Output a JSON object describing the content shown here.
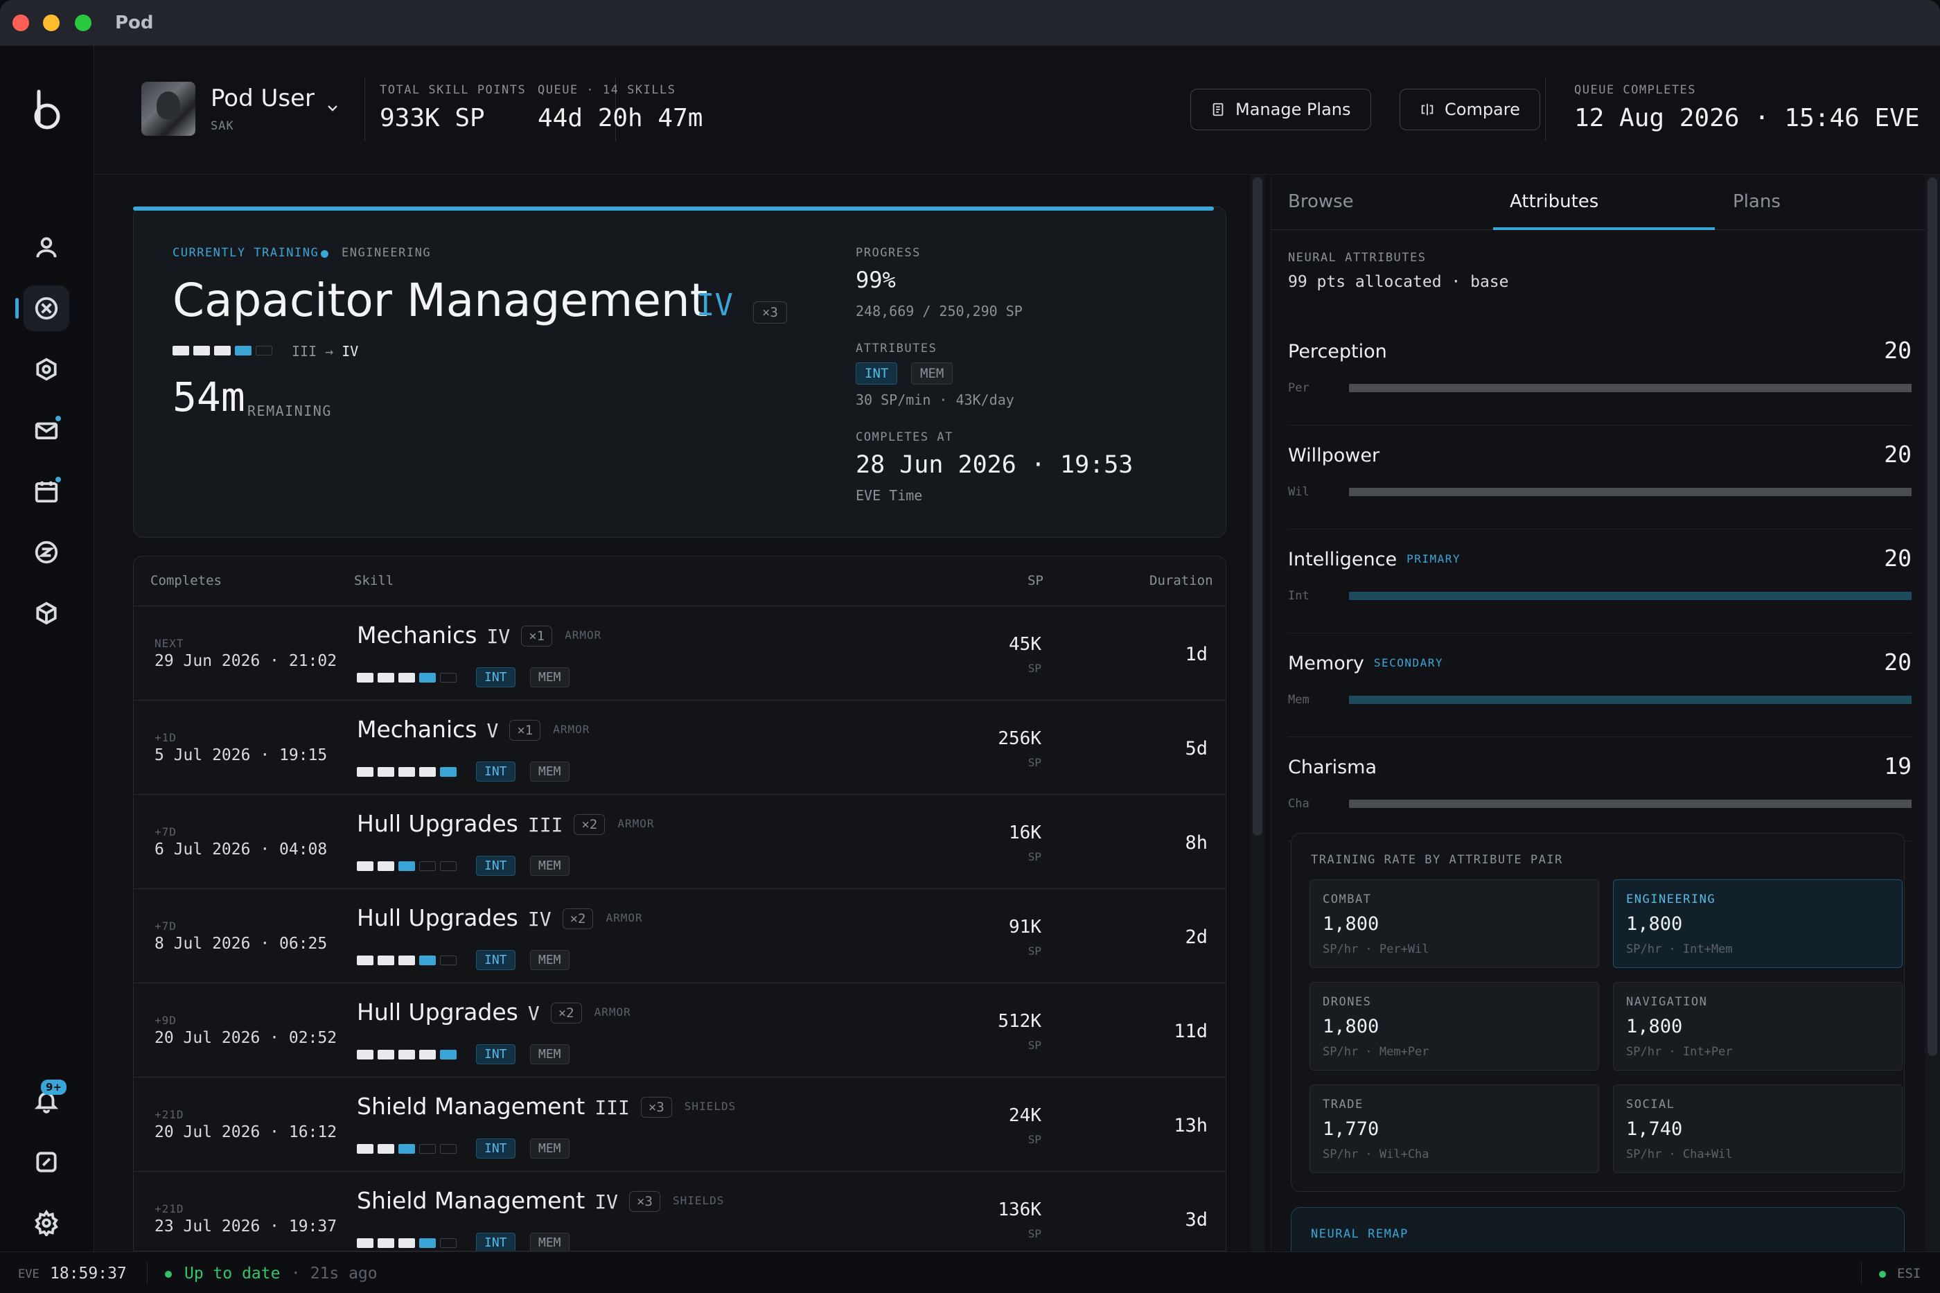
{
  "window": {
    "title": "Pod"
  },
  "header": {
    "user_name": "Pod User",
    "user_corp": "SAK",
    "total_sp_label": "TOTAL SKILL POINTS",
    "total_sp": "933K SP",
    "queue_label": "QUEUE · 14 SKILLS",
    "queue_time": "44d 20h 47m",
    "manage_plans": "Manage Plans",
    "compare": "Compare",
    "queue_completes_label": "QUEUE COMPLETES",
    "queue_completes": "12 Aug 2026 · 15:46 EVE"
  },
  "training": {
    "label": "CURRENTLY TRAINING",
    "category": "ENGINEERING",
    "skill": "Capacitor Management",
    "level": "IV",
    "multiplier": "×3",
    "level_from": "III",
    "arrow": "→",
    "level_to": "IV",
    "remaining": "54m",
    "remaining_label": "REMAINING",
    "progress_label": "PROGRESS",
    "progress": "99%",
    "progress_sp": "248,669 / 250,290 SP",
    "attributes_label": "ATTRIBUTES",
    "primary": "INT",
    "secondary": "MEM",
    "rate": "30 SP/min · 43K/day",
    "completes_label": "COMPLETES AT",
    "completes": "28 Jun 2026 · 19:53",
    "tz": "EVE Time",
    "pips_done": 3,
    "pip_progress": 0.99
  },
  "queue": {
    "headers": {
      "completes": "Completes",
      "skill": "Skill",
      "sp": "SP",
      "duration": "Duration"
    },
    "rows": [
      {
        "rel": "NEXT",
        "date": "29 Jun 2026 · 21:02",
        "name": "Mechanics",
        "level": "IV",
        "mult": "×1",
        "group": "ARMOR",
        "sp": "45K",
        "sp_unit": "SP",
        "dur": "1d",
        "pri": "INT",
        "sec": "MEM",
        "pips_done": 3,
        "pip_partial": true
      },
      {
        "rel": "+1D",
        "date": "5 Jul 2026 · 19:15",
        "name": "Mechanics",
        "level": "V",
        "mult": "×1",
        "group": "ARMOR",
        "sp": "256K",
        "sp_unit": "SP",
        "dur": "5d",
        "pri": "INT",
        "sec": "MEM",
        "pips_done": 4,
        "pip_partial": true
      },
      {
        "rel": "+7D",
        "date": "6 Jul 2026 · 04:08",
        "name": "Hull Upgrades",
        "level": "III",
        "mult": "×2",
        "group": "ARMOR",
        "sp": "16K",
        "sp_unit": "SP",
        "dur": "8h",
        "pri": "INT",
        "sec": "MEM",
        "pips_done": 2,
        "pip_partial": true
      },
      {
        "rel": "+7D",
        "date": "8 Jul 2026 · 06:25",
        "name": "Hull Upgrades",
        "level": "IV",
        "mult": "×2",
        "group": "ARMOR",
        "sp": "91K",
        "sp_unit": "SP",
        "dur": "2d",
        "pri": "INT",
        "sec": "MEM",
        "pips_done": 3,
        "pip_partial": true
      },
      {
        "rel": "+9D",
        "date": "20 Jul 2026 · 02:52",
        "name": "Hull Upgrades",
        "level": "V",
        "mult": "×2",
        "group": "ARMOR",
        "sp": "512K",
        "sp_unit": "SP",
        "dur": "11d",
        "pri": "INT",
        "sec": "MEM",
        "pips_done": 4,
        "pip_partial": true
      },
      {
        "rel": "+21D",
        "date": "20 Jul 2026 · 16:12",
        "name": "Shield Management",
        "level": "III",
        "mult": "×3",
        "group": "SHIELDS",
        "sp": "24K",
        "sp_unit": "SP",
        "dur": "13h",
        "pri": "INT",
        "sec": "MEM",
        "pips_done": 2,
        "pip_partial": true
      },
      {
        "rel": "+21D",
        "date": "23 Jul 2026 · 19:37",
        "name": "Shield Management",
        "level": "IV",
        "mult": "×3",
        "group": "SHIELDS",
        "sp": "136K",
        "sp_unit": "SP",
        "dur": "3d",
        "pri": "INT",
        "sec": "MEM",
        "pips_done": 3,
        "pip_partial": true
      }
    ]
  },
  "panel": {
    "tabs": [
      "Browse",
      "Attributes",
      "Plans"
    ],
    "active_tab": "Attributes",
    "neural_label": "NEURAL ATTRIBUTES",
    "neural_value": "99 pts allocated · base",
    "attributes": [
      {
        "name": "Perception",
        "tag": "",
        "abbr": "Per",
        "value": "20",
        "fill": 1.0,
        "color": "#4a4d52"
      },
      {
        "name": "Willpower",
        "tag": "",
        "abbr": "Wil",
        "value": "20",
        "fill": 1.0,
        "color": "#4a4d52"
      },
      {
        "name": "Intelligence",
        "tag": "PRIMARY",
        "abbr": "Int",
        "value": "20",
        "fill": 1.0,
        "color": "#1d4a5d"
      },
      {
        "name": "Memory",
        "tag": "SECONDARY",
        "abbr": "Mem",
        "value": "20",
        "fill": 1.0,
        "color": "#1d4a5d"
      },
      {
        "name": "Charisma",
        "tag": "",
        "abbr": "Cha",
        "value": "19",
        "fill": 1.0,
        "color": "#4a4d52"
      }
    ],
    "rate_title": "TRAINING RATE BY ATTRIBUTE PAIR",
    "rates": [
      {
        "name": "COMBAT",
        "value": "1,800",
        "sub": "SP/hr · Per+Wil"
      },
      {
        "name": "ENGINEERING",
        "value": "1,800",
        "sub": "SP/hr · Int+Mem"
      },
      {
        "name": "DRONES",
        "value": "1,800",
        "sub": "SP/hr · Mem+Per"
      },
      {
        "name": "NAVIGATION",
        "value": "1,800",
        "sub": "SP/hr · Int+Per"
      },
      {
        "name": "TRADE",
        "value": "1,770",
        "sub": "SP/hr · Wil+Cha"
      },
      {
        "name": "SOCIAL",
        "value": "1,740",
        "sub": "SP/hr · Cha+Wil"
      }
    ],
    "highlighted_rate": "ENGINEERING",
    "remap_title": "NEURAL REMAP"
  },
  "status": {
    "eve_label": "EVE",
    "clock": "18:59:37",
    "sync": "Up to date",
    "ago": "· 21s ago",
    "esi": "ESI"
  },
  "rail": {
    "icons": [
      "character-icon",
      "skills-icon",
      "fitting-icon",
      "mail-icon",
      "calendar-icon",
      "wallet-icon",
      "assets-icon"
    ],
    "notifications": "9+"
  },
  "colors": {
    "accent": "#3aa6d8",
    "success": "#32c56a"
  }
}
